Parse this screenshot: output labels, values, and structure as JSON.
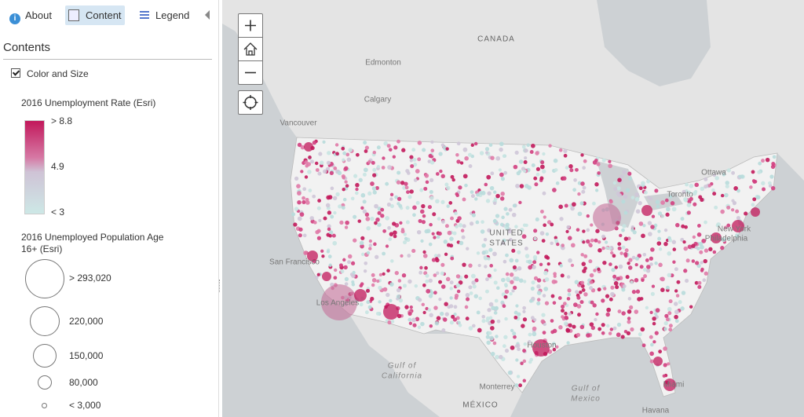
{
  "tabs": [
    "About",
    "Content",
    "Legend"
  ],
  "panel": {
    "title": "Contents",
    "layer": "Color and Size",
    "color_legend": {
      "title": "2016 Unemployment Rate (Esri)",
      "labels": [
        "> 8.8",
        "4.9",
        "< 3"
      ]
    },
    "size_legend": {
      "title": "2016 Unemployed Population Age 16+ (Esri)",
      "labels": [
        "> 293,020",
        "220,000",
        "150,000",
        "80,000",
        "< 3,000"
      ]
    }
  },
  "map": {
    "labels": [
      "CANADA",
      "Edmonton",
      "Calgary",
      "Vancouver",
      "Ottawa",
      "Toronto",
      "New York",
      "Philadelphia",
      "UNITED",
      "STATES",
      "San Francisco",
      "Los Angeles",
      "Houston",
      "Gulf of",
      "California",
      "Gulf of",
      "Mexico",
      "Monterrey",
      "MÉXICO",
      "Havana",
      "Miami"
    ]
  }
}
